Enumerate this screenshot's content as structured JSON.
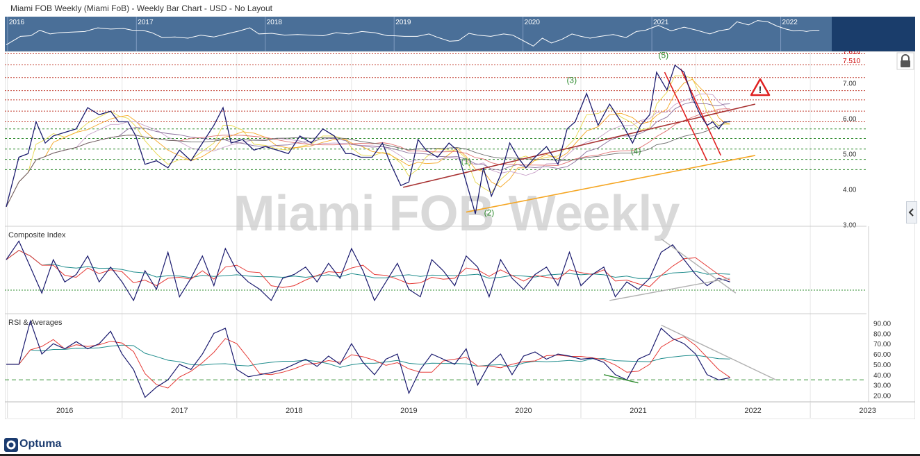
{
  "header": {
    "title": "Miami FOB Weekly (Miami FoB) - Weekly Bar Chart - USD - No Layout"
  },
  "watermark": "Miami FOB Weekly",
  "brand": {
    "name": "Optuma"
  },
  "icons": {
    "lock": "lock-icon",
    "warning": "warning-triangle-icon",
    "collapse": "chevron-left-icon"
  },
  "colors": {
    "price": "#1a1a6e",
    "trend_red": "#e02020",
    "trend_dark": "#a83232",
    "trend_orange": "#f5a623",
    "dotted_red": "#c0392b",
    "dotted_green": "#2e8b2e",
    "nav_bg": "#4a6f98",
    "nav_dark": "#1a3d6b",
    "ma_red": "#e53935",
    "ma_teal": "#1e8c8c"
  },
  "chart_data": [
    {
      "type": "line",
      "panel": "navigator",
      "years": [
        "2016",
        "2017",
        "2018",
        "2019",
        "2020",
        "2021",
        "2022"
      ]
    },
    {
      "type": "line",
      "panel": "price",
      "title": "Miami FOB Weekly (Miami FoB)",
      "x_axis": [
        "2016",
        "2017",
        "2018",
        "2019",
        "2020",
        "2021",
        "2022",
        "2023"
      ],
      "y_ticks": [
        "3.00",
        "4.00",
        "5.00",
        "6.00",
        "7.00"
      ],
      "ylim": [
        2.95,
        7.85
      ],
      "price_labels": [
        "7.614",
        "7.510"
      ],
      "levels_red": [
        7.82,
        7.51,
        7.15,
        6.78,
        6.52,
        6.2,
        5.9
      ],
      "levels_green": [
        5.7,
        5.43,
        5.13,
        4.84,
        4.55
      ],
      "series": [
        {
          "name": "Price",
          "x": [
            2015.99,
            2016.1,
            2016.18,
            2016.25,
            2016.33,
            2016.4,
            2016.5,
            2016.6,
            2016.7,
            2016.8,
            2016.9,
            2016.97,
            2017.05,
            2017.12,
            2017.2,
            2017.3,
            2017.4,
            2017.5,
            2017.6,
            2017.7,
            2017.8,
            2017.88,
            2017.95,
            2018.05,
            2018.15,
            2018.25,
            2018.35,
            2018.45,
            2018.55,
            2018.65,
            2018.75,
            2018.85,
            2018.95,
            2019.0,
            2019.08,
            2019.18,
            2019.27,
            2019.33,
            2019.43,
            2019.5,
            2019.58,
            2019.65,
            2019.75,
            2019.85,
            2019.92,
            2020.0,
            2020.08,
            2020.15,
            2020.22,
            2020.3,
            2020.38,
            2020.45,
            2020.52,
            2020.6,
            2020.7,
            2020.8,
            2020.88,
            2020.95,
            2021.05,
            2021.15,
            2021.25,
            2021.35,
            2021.45,
            2021.52,
            2021.6,
            2021.66,
            2021.75,
            2021.82,
            2021.9,
            2021.97,
            2022.04,
            2022.1,
            2022.15,
            2022.2,
            2022.25,
            2022.3
          ],
          "y": [
            3.5,
            4.9,
            5.0,
            5.9,
            5.3,
            5.5,
            5.6,
            5.7,
            6.3,
            6.1,
            6.2,
            5.9,
            5.9,
            5.5,
            4.7,
            4.8,
            4.6,
            5.1,
            4.8,
            5.3,
            5.8,
            6.3,
            5.3,
            5.4,
            5.1,
            5.2,
            5.1,
            5.0,
            5.5,
            5.3,
            5.7,
            5.5,
            5.0,
            5.0,
            4.9,
            4.9,
            5.3,
            4.8,
            4.1,
            4.2,
            5.4,
            5.1,
            4.9,
            5.3,
            5.1,
            4.2,
            3.3,
            4.6,
            3.8,
            4.4,
            5.3,
            4.9,
            4.6,
            4.9,
            5.2,
            4.7,
            5.7,
            5.9,
            6.7,
            5.8,
            6.4,
            5.9,
            5.3,
            5.8,
            6.1,
            7.3,
            6.8,
            7.5,
            7.3,
            6.6,
            6.1,
            5.8,
            5.9,
            5.7,
            5.9,
            5.9
          ]
        }
      ],
      "annotations": [
        {
          "label": "(1)",
          "x": 2020.0,
          "y": 4.7
        },
        {
          "label": "(2)",
          "x": 2020.2,
          "y": 3.25
        },
        {
          "label": "(3)",
          "x": 2020.92,
          "y": 7.0
        },
        {
          "label": "(4)",
          "x": 2021.48,
          "y": 5.0
        },
        {
          "label": "(5)",
          "x": 2021.72,
          "y": 7.7
        }
      ],
      "trendlines": [
        {
          "color": "trend_dark",
          "from": [
            2019.45,
            4.05
          ],
          "to": [
            2022.52,
            6.4
          ]
        },
        {
          "color": "trend_orange",
          "from": [
            2020.0,
            3.35
          ],
          "to": [
            2022.52,
            4.95
          ]
        },
        {
          "color": "trend_red",
          "from": [
            2021.87,
            7.4
          ],
          "to": [
            2022.22,
            4.95
          ]
        },
        {
          "color": "trend_red",
          "from": [
            2021.73,
            7.3
          ],
          "to": [
            2022.1,
            4.8
          ]
        }
      ]
    },
    {
      "type": "line",
      "panel": "oscillator",
      "title": "Composite Index",
      "series": [
        {
          "name": "Composite Index",
          "x": [
            2015.99,
            2016.1,
            2016.2,
            2016.3,
            2016.4,
            2016.5,
            2016.6,
            2016.7,
            2016.8,
            2016.9,
            2017.0,
            2017.1,
            2017.2,
            2017.3,
            2017.4,
            2017.5,
            2017.6,
            2017.7,
            2017.8,
            2017.9,
            2018.0,
            2018.1,
            2018.2,
            2018.3,
            2018.4,
            2018.5,
            2018.6,
            2018.7,
            2018.8,
            2018.9,
            2019.0,
            2019.1,
            2019.2,
            2019.3,
            2019.4,
            2019.5,
            2019.6,
            2019.7,
            2019.8,
            2019.9,
            2020.0,
            2020.1,
            2020.2,
            2020.3,
            2020.4,
            2020.5,
            2020.6,
            2020.7,
            2020.8,
            2020.9,
            2021.0,
            2021.1,
            2021.2,
            2021.3,
            2021.4,
            2021.5,
            2021.6,
            2021.7,
            2021.8,
            2021.9,
            2022.0,
            2022.1,
            2022.2,
            2022.3
          ],
          "y": [
            70,
            95,
            60,
            25,
            70,
            40,
            50,
            75,
            40,
            60,
            40,
            15,
            55,
            30,
            80,
            20,
            45,
            75,
            35,
            85,
            55,
            40,
            30,
            15,
            45,
            50,
            60,
            40,
            65,
            45,
            85,
            55,
            15,
            40,
            65,
            30,
            20,
            70,
            55,
            35,
            75,
            60,
            20,
            70,
            45,
            30,
            50,
            60,
            35,
            80,
            35,
            50,
            60,
            20,
            40,
            30,
            45,
            80,
            90,
            70,
            50,
            35,
            45,
            40
          ]
        }
      ]
    },
    {
      "type": "line",
      "panel": "rsi",
      "title": "RSI & Averages",
      "y_ticks": [
        "20.00",
        "30.00",
        "40.00",
        "50.00",
        "60.00",
        "70.00",
        "80.00",
        "90.00"
      ],
      "ylim": [
        15,
        95
      ],
      "reference_level": 35,
      "series": [
        {
          "name": "RSI",
          "x": [
            2015.99,
            2016.1,
            2016.2,
            2016.3,
            2016.4,
            2016.5,
            2016.6,
            2016.7,
            2016.8,
            2016.9,
            2017.0,
            2017.1,
            2017.2,
            2017.3,
            2017.4,
            2017.5,
            2017.6,
            2017.7,
            2017.8,
            2017.9,
            2018.0,
            2018.1,
            2018.2,
            2018.3,
            2018.4,
            2018.5,
            2018.6,
            2018.7,
            2018.8,
            2018.9,
            2019.0,
            2019.1,
            2019.2,
            2019.3,
            2019.4,
            2019.5,
            2019.6,
            2019.7,
            2019.8,
            2019.9,
            2020.0,
            2020.1,
            2020.2,
            2020.3,
            2020.4,
            2020.5,
            2020.6,
            2020.7,
            2020.8,
            2020.9,
            2021.0,
            2021.1,
            2021.2,
            2021.3,
            2021.4,
            2021.5,
            2021.6,
            2021.7,
            2021.8,
            2021.9,
            2022.0,
            2022.1,
            2022.2,
            2022.3
          ],
          "y": [
            50,
            50,
            92,
            60,
            70,
            65,
            72,
            65,
            70,
            82,
            60,
            45,
            18,
            28,
            35,
            50,
            45,
            60,
            80,
            85,
            45,
            38,
            40,
            42,
            45,
            50,
            55,
            48,
            58,
            50,
            70,
            52,
            40,
            55,
            60,
            22,
            45,
            60,
            55,
            50,
            65,
            30,
            50,
            60,
            40,
            58,
            62,
            55,
            60,
            58,
            55,
            56,
            52,
            40,
            35,
            55,
            60,
            85,
            75,
            70,
            60,
            40,
            35,
            37
          ]
        }
      ]
    }
  ]
}
